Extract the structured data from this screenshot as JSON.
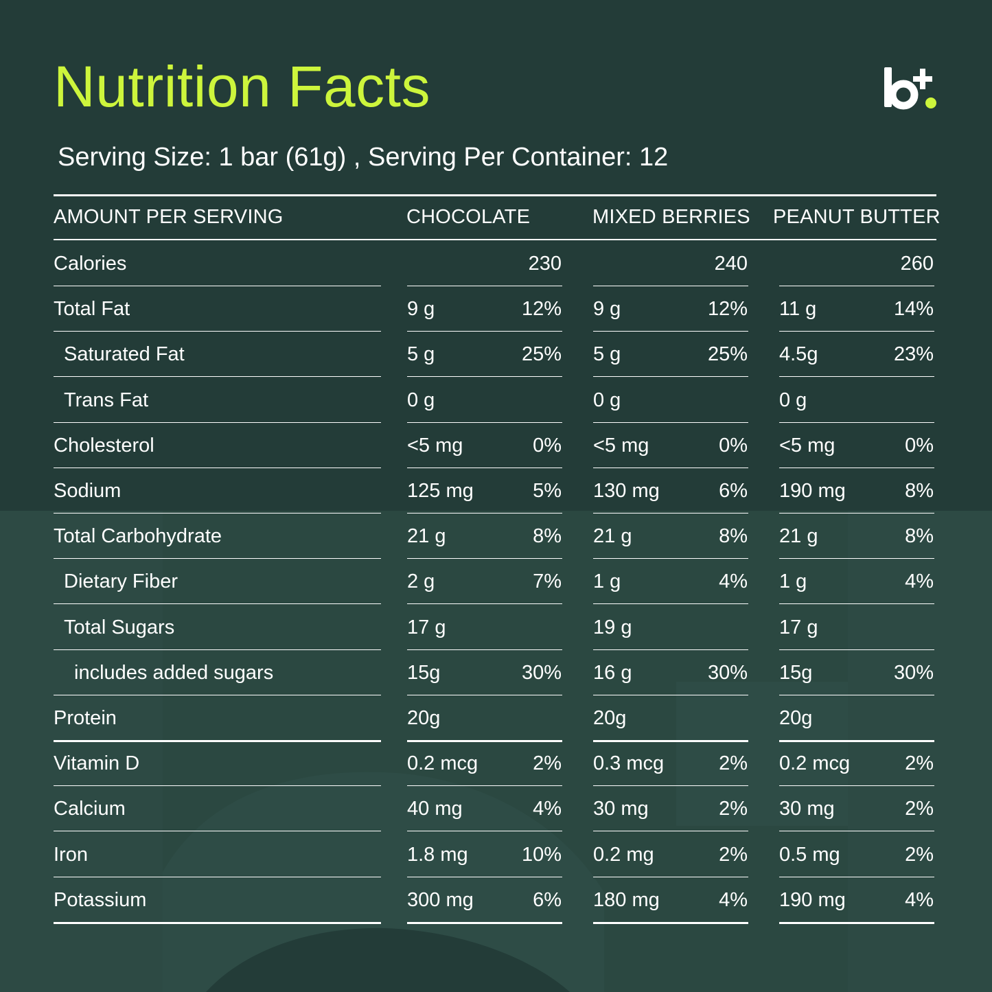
{
  "title": "Nutrition Facts",
  "serving_line": "Serving Size: 1 bar (61g) , Serving Per Container: 12",
  "logo_icon": "brand-logo-icon",
  "colors": {
    "background": "#233c38",
    "accent": "#cdf53c",
    "text": "#ffffff"
  },
  "table": {
    "headers": [
      "AMOUNT PER SERVING",
      "CHOCOLATE",
      "MIXED BERRIES",
      "PEANUT BUTTER"
    ],
    "rows": [
      {
        "label": "Calories",
        "indent": 0,
        "values": [
          {
            "amount": "",
            "pct": "230"
          },
          {
            "amount": "",
            "pct": "240"
          },
          {
            "amount": "",
            "pct": "260"
          }
        ]
      },
      {
        "label": "Total Fat",
        "indent": 0,
        "values": [
          {
            "amount": "9 g",
            "pct": "12%"
          },
          {
            "amount": "9 g",
            "pct": "12%"
          },
          {
            "amount": "11 g",
            "pct": "14%"
          }
        ]
      },
      {
        "label": "Saturated Fat",
        "indent": 1,
        "values": [
          {
            "amount": "5 g",
            "pct": "25%"
          },
          {
            "amount": "5 g",
            "pct": "25%"
          },
          {
            "amount": "4.5g",
            "pct": "23%"
          }
        ]
      },
      {
        "label": "Trans Fat",
        "indent": 1,
        "values": [
          {
            "amount": "0 g",
            "pct": ""
          },
          {
            "amount": "0 g",
            "pct": ""
          },
          {
            "amount": "0 g",
            "pct": ""
          }
        ]
      },
      {
        "label": "Cholesterol",
        "indent": 0,
        "values": [
          {
            "amount": "<5 mg",
            "pct": "0%"
          },
          {
            "amount": "<5 mg",
            "pct": "0%"
          },
          {
            "amount": "<5 mg",
            "pct": "0%"
          }
        ]
      },
      {
        "label": "Sodium",
        "indent": 0,
        "values": [
          {
            "amount": "125 mg",
            "pct": "5%"
          },
          {
            "amount": "130 mg",
            "pct": "6%"
          },
          {
            "amount": "190 mg",
            "pct": "8%"
          }
        ]
      },
      {
        "label": "Total Carbohydrate",
        "indent": 0,
        "values": [
          {
            "amount": "21 g",
            "pct": "8%"
          },
          {
            "amount": "21 g",
            "pct": "8%"
          },
          {
            "amount": "21 g",
            "pct": "8%"
          }
        ]
      },
      {
        "label": "Dietary Fiber",
        "indent": 1,
        "values": [
          {
            "amount": "2 g",
            "pct": "7%"
          },
          {
            "amount": "1 g",
            "pct": "4%"
          },
          {
            "amount": "1 g",
            "pct": "4%"
          }
        ]
      },
      {
        "label": "Total Sugars",
        "indent": 1,
        "values": [
          {
            "amount": "17 g",
            "pct": ""
          },
          {
            "amount": "19 g",
            "pct": ""
          },
          {
            "amount": "17 g",
            "pct": ""
          }
        ]
      },
      {
        "label": "includes added sugars",
        "indent": 2,
        "values": [
          {
            "amount": "15g",
            "pct": "30%"
          },
          {
            "amount": "16 g",
            "pct": "30%"
          },
          {
            "amount": "15g",
            "pct": "30%"
          }
        ]
      },
      {
        "label": "Protein",
        "indent": 0,
        "values": [
          {
            "amount": "20g",
            "pct": ""
          },
          {
            "amount": "20g",
            "pct": ""
          },
          {
            "amount": "20g",
            "pct": ""
          }
        ]
      },
      {
        "label": "Vitamin D",
        "indent": 0,
        "values": [
          {
            "amount": "0.2 mcg",
            "pct": "2%"
          },
          {
            "amount": "0.3 mcg",
            "pct": "2%"
          },
          {
            "amount": "0.2 mcg",
            "pct": "2%"
          }
        ]
      },
      {
        "label": "Calcium",
        "indent": 0,
        "values": [
          {
            "amount": "40 mg",
            "pct": "4%"
          },
          {
            "amount": "30 mg",
            "pct": "2%"
          },
          {
            "amount": "30 mg",
            "pct": "2%"
          }
        ]
      },
      {
        "label": "Iron",
        "indent": 0,
        "values": [
          {
            "amount": "1.8 mg",
            "pct": "10%"
          },
          {
            "amount": "0.2 mg",
            "pct": "2%"
          },
          {
            "amount": "0.5 mg",
            "pct": "2%"
          }
        ]
      },
      {
        "label": "Potassium",
        "indent": 0,
        "values": [
          {
            "amount": "300 mg",
            "pct": "6%"
          },
          {
            "amount": "180 mg",
            "pct": "4%"
          },
          {
            "amount": "190 mg",
            "pct": "4%"
          }
        ]
      }
    ]
  }
}
